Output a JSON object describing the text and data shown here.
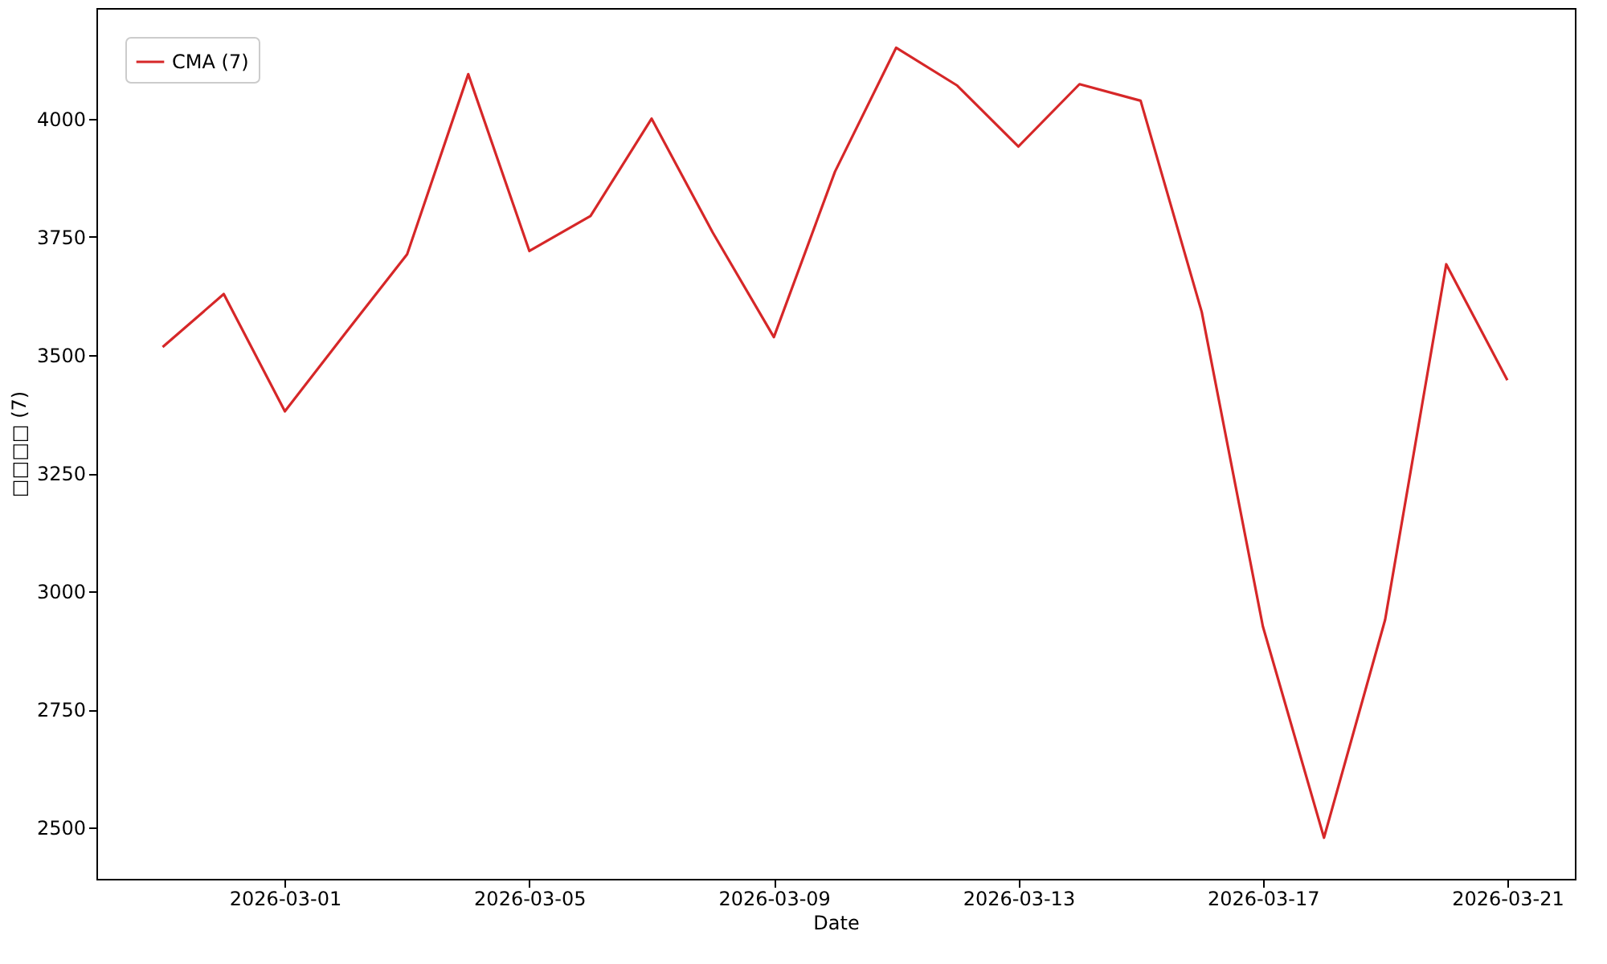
{
  "chart_data": {
    "type": "line",
    "xlabel": "Date",
    "ylabel": "□□□□ (7)",
    "x": [
      "2026-02-27",
      "2026-02-28",
      "2026-03-01",
      "2026-03-02",
      "2026-03-03",
      "2026-03-04",
      "2026-03-05",
      "2026-03-06",
      "2026-03-07",
      "2026-03-08",
      "2026-03-09",
      "2026-03-10",
      "2026-03-11",
      "2026-03-12",
      "2026-03-13",
      "2026-03-14",
      "2026-03-15",
      "2026-03-16",
      "2026-03-17",
      "2026-03-18",
      "2026-03-19",
      "2026-03-20",
      "2026-03-21"
    ],
    "series": [
      {
        "name": "CMA (7)",
        "color": "#d62728",
        "values": [
          3517,
          3629,
          3381,
          3548,
          3713,
          4094,
          3720,
          3794,
          4000,
          3759,
          3538,
          3888,
          4150,
          4070,
          3941,
          4073,
          4038,
          3591,
          2926,
          2479,
          2940,
          3692,
          3447
        ]
      }
    ],
    "xlim": [
      "2026-02-25T22:00",
      "2026-03-22T02:30"
    ],
    "xticks": [
      "2026-03-01",
      "2026-03-05",
      "2026-03-09",
      "2026-03-13",
      "2026-03-17",
      "2026-03-21"
    ],
    "ylim": [
      2392,
      4234
    ],
    "yticks": [
      2500,
      2750,
      3000,
      3250,
      3500,
      3750,
      4000
    ],
    "grid": false,
    "legend": "top left",
    "marker": "none",
    "line_style": "solid"
  }
}
